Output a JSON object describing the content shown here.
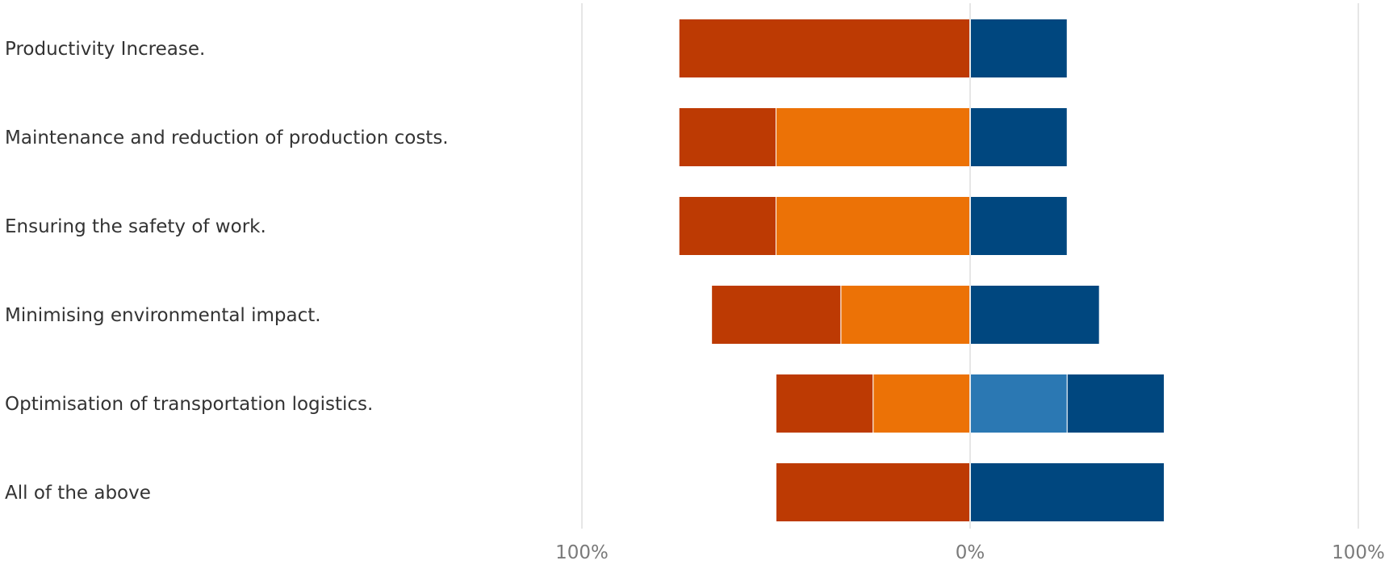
{
  "chart_data": {
    "type": "bar",
    "orientation": "horizontal",
    "diverging": true,
    "categories": [
      "Productivity Increase.",
      "Maintenance and reduction of production costs.",
      "Ensuring the safety of work.",
      "Minimising environmental impact.",
      "Optimisation of transportation logistics.",
      "All of the above"
    ],
    "series": [
      {
        "side": "negative",
        "color": "#bd3a03",
        "values": [
          75,
          25,
          25,
          33.3,
          25,
          50
        ]
      },
      {
        "side": "negative",
        "color": "#ec7206",
        "values": [
          0,
          50,
          50,
          33.3,
          25,
          0
        ]
      },
      {
        "side": "positive",
        "color": "#2b78b3",
        "values": [
          0,
          0,
          0,
          0,
          25,
          0
        ]
      },
      {
        "side": "positive",
        "color": "#00477f",
        "values": [
          25,
          25,
          25,
          33.3,
          25,
          50
        ]
      }
    ],
    "xlim": [
      -100,
      100
    ],
    "x_ticks": [
      {
        "value": -100,
        "label": "100%"
      },
      {
        "value": 0,
        "label": "0%"
      },
      {
        "value": 100,
        "label": "100%"
      }
    ],
    "grid": true,
    "title": "",
    "xlabel": "",
    "ylabel": ""
  }
}
